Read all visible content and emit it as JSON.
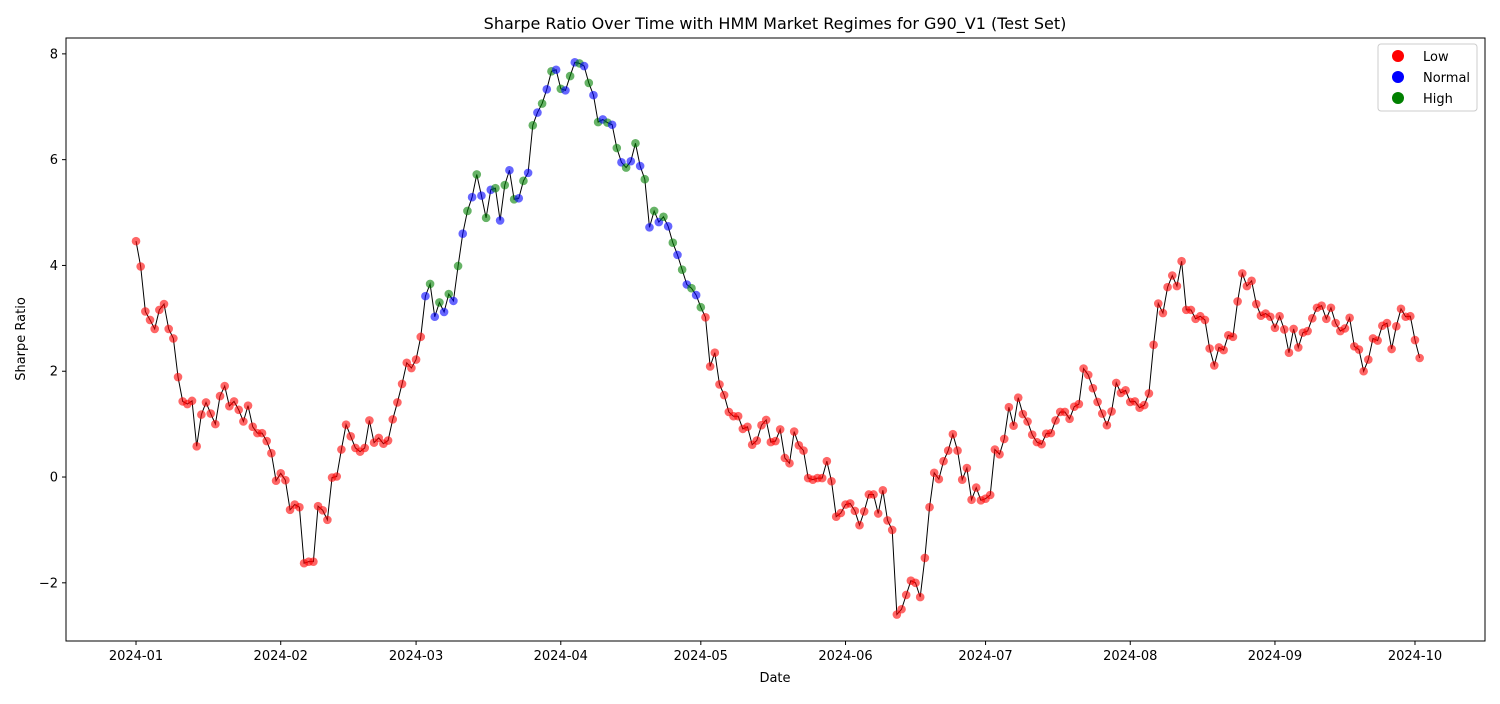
{
  "chart_data": {
    "type": "scatter",
    "title": "Sharpe Ratio Over Time with HMM Market Regimes for G90_V1 (Test Set)",
    "xlabel": "Date",
    "ylabel": "Sharpe Ratio",
    "xlim": [
      "2023-12-17",
      "2024-10-16"
    ],
    "ylim": [
      -3.1,
      8.3
    ],
    "x_ticks": [
      "2024-01-01",
      "2024-02-01",
      "2024-03-01",
      "2024-04-01",
      "2024-05-01",
      "2024-06-01",
      "2024-07-01",
      "2024-08-01",
      "2024-09-01",
      "2024-10-01"
    ],
    "x_tick_labels": [
      "2024-01",
      "2024-02",
      "2024-03",
      "2024-04",
      "2024-05",
      "2024-06",
      "2024-07",
      "2024-08",
      "2024-09",
      "2024-10"
    ],
    "y_ticks": [
      -2,
      0,
      2,
      4,
      6,
      8
    ],
    "y_tick_labels": [
      "−2",
      "0",
      "2",
      "4",
      "6",
      "8"
    ],
    "grid": false,
    "legend_position": "top-right",
    "regimes": [
      {
        "name": "Low",
        "color": "#ff0000"
      },
      {
        "name": "Normal",
        "color": "#0000ff"
      },
      {
        "name": "High",
        "color": "#008000"
      }
    ],
    "line_color": "#000000",
    "start_date": "2024-01-01",
    "regime_codes": "L=Low, N=Normal, H=High",
    "points": [
      [
        4.46,
        "L"
      ],
      [
        3.98,
        "L"
      ],
      [
        3.13,
        "L"
      ],
      [
        2.97,
        "L"
      ],
      [
        2.8,
        "L"
      ],
      [
        3.16,
        "L"
      ],
      [
        3.27,
        "L"
      ],
      [
        2.8,
        "L"
      ],
      [
        2.62,
        "L"
      ],
      [
        1.89,
        "L"
      ],
      [
        1.43,
        "L"
      ],
      [
        1.38,
        "L"
      ],
      [
        1.44,
        "L"
      ],
      [
        0.58,
        "L"
      ],
      [
        1.18,
        "L"
      ],
      [
        1.41,
        "L"
      ],
      [
        1.2,
        "L"
      ],
      [
        1.0,
        "L"
      ],
      [
        1.53,
        "L"
      ],
      [
        1.72,
        "L"
      ],
      [
        1.34,
        "L"
      ],
      [
        1.43,
        "L"
      ],
      [
        1.27,
        "L"
      ],
      [
        1.05,
        "L"
      ],
      [
        1.35,
        "L"
      ],
      [
        0.95,
        "L"
      ],
      [
        0.83,
        "L"
      ],
      [
        0.83,
        "L"
      ],
      [
        0.68,
        "L"
      ],
      [
        0.45,
        "L"
      ],
      [
        -0.07,
        "L"
      ],
      [
        0.07,
        "L"
      ],
      [
        -0.06,
        "L"
      ],
      [
        -0.62,
        "L"
      ],
      [
        -0.52,
        "L"
      ],
      [
        -0.57,
        "L"
      ],
      [
        -1.63,
        "L"
      ],
      [
        -1.6,
        "L"
      ],
      [
        -1.6,
        "L"
      ],
      [
        -0.55,
        "L"
      ],
      [
        -0.63,
        "L"
      ],
      [
        -0.81,
        "L"
      ],
      [
        -0.01,
        "L"
      ],
      [
        0.01,
        "L"
      ],
      [
        0.52,
        "L"
      ],
      [
        0.99,
        "L"
      ],
      [
        0.77,
        "L"
      ],
      [
        0.55,
        "L"
      ],
      [
        0.48,
        "L"
      ],
      [
        0.55,
        "L"
      ],
      [
        1.07,
        "L"
      ],
      [
        0.65,
        "L"
      ],
      [
        0.74,
        "L"
      ],
      [
        0.63,
        "L"
      ],
      [
        0.69,
        "L"
      ],
      [
        1.09,
        "L"
      ],
      [
        1.41,
        "L"
      ],
      [
        1.76,
        "L"
      ],
      [
        2.16,
        "L"
      ],
      [
        2.06,
        "L"
      ],
      [
        2.22,
        "L"
      ],
      [
        2.65,
        "L"
      ],
      [
        3.42,
        "N"
      ],
      [
        3.65,
        "H"
      ],
      [
        3.03,
        "N"
      ],
      [
        3.3,
        "H"
      ],
      [
        3.12,
        "N"
      ],
      [
        3.46,
        "H"
      ],
      [
        3.33,
        "N"
      ],
      [
        3.99,
        "H"
      ],
      [
        4.6,
        "N"
      ],
      [
        5.03,
        "H"
      ],
      [
        5.29,
        "N"
      ],
      [
        5.72,
        "H"
      ],
      [
        5.32,
        "N"
      ],
      [
        4.9,
        "H"
      ],
      [
        5.43,
        "N"
      ],
      [
        5.46,
        "H"
      ],
      [
        4.85,
        "N"
      ],
      [
        5.52,
        "H"
      ],
      [
        5.8,
        "N"
      ],
      [
        5.25,
        "H"
      ],
      [
        5.27,
        "N"
      ],
      [
        5.6,
        "H"
      ],
      [
        5.75,
        "N"
      ],
      [
        6.65,
        "H"
      ],
      [
        6.89,
        "N"
      ],
      [
        7.06,
        "H"
      ],
      [
        7.33,
        "N"
      ],
      [
        7.67,
        "H"
      ],
      [
        7.7,
        "N"
      ],
      [
        7.34,
        "H"
      ],
      [
        7.31,
        "N"
      ],
      [
        7.58,
        "H"
      ],
      [
        7.84,
        "N"
      ],
      [
        7.82,
        "H"
      ],
      [
        7.77,
        "N"
      ],
      [
        7.45,
        "H"
      ],
      [
        7.22,
        "N"
      ],
      [
        6.71,
        "H"
      ],
      [
        6.76,
        "N"
      ],
      [
        6.7,
        "H"
      ],
      [
        6.66,
        "N"
      ],
      [
        6.22,
        "H"
      ],
      [
        5.95,
        "N"
      ],
      [
        5.85,
        "H"
      ],
      [
        5.97,
        "N"
      ],
      [
        6.31,
        "H"
      ],
      [
        5.88,
        "N"
      ],
      [
        5.63,
        "H"
      ],
      [
        4.72,
        "N"
      ],
      [
        5.03,
        "H"
      ],
      [
        4.82,
        "N"
      ],
      [
        4.92,
        "H"
      ],
      [
        4.74,
        "N"
      ],
      [
        4.43,
        "H"
      ],
      [
        4.2,
        "N"
      ],
      [
        3.92,
        "H"
      ],
      [
        3.64,
        "N"
      ],
      [
        3.57,
        "H"
      ],
      [
        3.44,
        "N"
      ],
      [
        3.21,
        "H"
      ],
      [
        3.02,
        "L"
      ],
      [
        2.09,
        "L"
      ],
      [
        2.35,
        "L"
      ],
      [
        1.75,
        "L"
      ],
      [
        1.55,
        "L"
      ],
      [
        1.23,
        "L"
      ],
      [
        1.15,
        "L"
      ],
      [
        1.15,
        "L"
      ],
      [
        0.91,
        "L"
      ],
      [
        0.95,
        "L"
      ],
      [
        0.61,
        "L"
      ],
      [
        0.69,
        "L"
      ],
      [
        0.98,
        "L"
      ],
      [
        1.08,
        "L"
      ],
      [
        0.66,
        "L"
      ],
      [
        0.68,
        "L"
      ],
      [
        0.9,
        "L"
      ],
      [
        0.36,
        "L"
      ],
      [
        0.26,
        "L"
      ],
      [
        0.86,
        "L"
      ],
      [
        0.6,
        "L"
      ],
      [
        0.5,
        "L"
      ],
      [
        -0.02,
        "L"
      ],
      [
        -0.05,
        "L"
      ],
      [
        -0.02,
        "L"
      ],
      [
        -0.02,
        "L"
      ],
      [
        0.3,
        "L"
      ],
      [
        -0.08,
        "L"
      ],
      [
        -0.75,
        "L"
      ],
      [
        -0.68,
        "L"
      ],
      [
        -0.52,
        "L"
      ],
      [
        -0.5,
        "L"
      ],
      [
        -0.64,
        "L"
      ],
      [
        -0.91,
        "L"
      ],
      [
        -0.65,
        "L"
      ],
      [
        -0.33,
        "L"
      ],
      [
        -0.33,
        "L"
      ],
      [
        -0.69,
        "L"
      ],
      [
        -0.25,
        "L"
      ],
      [
        -0.82,
        "L"
      ],
      [
        -1.0,
        "L"
      ],
      [
        -2.6,
        "L"
      ],
      [
        -2.5,
        "L"
      ],
      [
        -2.23,
        "L"
      ],
      [
        -1.96,
        "L"
      ],
      [
        -2.0,
        "L"
      ],
      [
        -2.27,
        "L"
      ],
      [
        -1.53,
        "L"
      ],
      [
        -0.57,
        "L"
      ],
      [
        0.08,
        "L"
      ],
      [
        -0.04,
        "L"
      ],
      [
        0.3,
        "L"
      ],
      [
        0.5,
        "L"
      ],
      [
        0.81,
        "L"
      ],
      [
        0.5,
        "L"
      ],
      [
        -0.05,
        "L"
      ],
      [
        0.17,
        "L"
      ],
      [
        -0.43,
        "L"
      ],
      [
        -0.2,
        "L"
      ],
      [
        -0.44,
        "L"
      ],
      [
        -0.41,
        "L"
      ],
      [
        -0.34,
        "L"
      ],
      [
        0.52,
        "L"
      ],
      [
        0.43,
        "L"
      ],
      [
        0.72,
        "L"
      ],
      [
        1.32,
        "L"
      ],
      [
        0.97,
        "L"
      ],
      [
        1.5,
        "L"
      ],
      [
        1.19,
        "L"
      ],
      [
        1.05,
        "L"
      ],
      [
        0.8,
        "L"
      ],
      [
        0.66,
        "L"
      ],
      [
        0.62,
        "L"
      ],
      [
        0.82,
        "L"
      ],
      [
        0.83,
        "L"
      ],
      [
        1.07,
        "L"
      ],
      [
        1.23,
        "L"
      ],
      [
        1.23,
        "L"
      ],
      [
        1.1,
        "L"
      ],
      [
        1.33,
        "L"
      ],
      [
        1.38,
        "L"
      ],
      [
        2.05,
        "L"
      ],
      [
        1.93,
        "L"
      ],
      [
        1.68,
        "L"
      ],
      [
        1.42,
        "L"
      ],
      [
        1.2,
        "L"
      ],
      [
        0.98,
        "L"
      ],
      [
        1.24,
        "L"
      ],
      [
        1.78,
        "L"
      ],
      [
        1.59,
        "L"
      ],
      [
        1.64,
        "L"
      ],
      [
        1.42,
        "L"
      ],
      [
        1.43,
        "L"
      ],
      [
        1.31,
        "L"
      ],
      [
        1.36,
        "L"
      ],
      [
        1.58,
        "L"
      ],
      [
        2.5,
        "L"
      ],
      [
        3.28,
        "L"
      ],
      [
        3.1,
        "L"
      ],
      [
        3.59,
        "L"
      ],
      [
        3.81,
        "L"
      ],
      [
        3.61,
        "L"
      ],
      [
        4.08,
        "L"
      ],
      [
        3.16,
        "L"
      ],
      [
        3.16,
        "L"
      ],
      [
        2.99,
        "L"
      ],
      [
        3.04,
        "L"
      ],
      [
        2.97,
        "L"
      ],
      [
        2.43,
        "L"
      ],
      [
        2.11,
        "L"
      ],
      [
        2.45,
        "L"
      ],
      [
        2.4,
        "L"
      ],
      [
        2.68,
        "L"
      ],
      [
        2.65,
        "L"
      ],
      [
        3.32,
        "L"
      ],
      [
        3.85,
        "L"
      ],
      [
        3.61,
        "L"
      ],
      [
        3.71,
        "L"
      ],
      [
        3.27,
        "L"
      ],
      [
        3.05,
        "L"
      ],
      [
        3.09,
        "L"
      ],
      [
        3.03,
        "L"
      ],
      [
        2.82,
        "L"
      ],
      [
        3.04,
        "L"
      ],
      [
        2.79,
        "L"
      ],
      [
        2.35,
        "L"
      ],
      [
        2.8,
        "L"
      ],
      [
        2.45,
        "L"
      ],
      [
        2.73,
        "L"
      ],
      [
        2.76,
        "L"
      ],
      [
        3.0,
        "L"
      ],
      [
        3.2,
        "L"
      ],
      [
        3.24,
        "L"
      ],
      [
        2.99,
        "L"
      ],
      [
        3.2,
        "L"
      ],
      [
        2.91,
        "L"
      ],
      [
        2.76,
        "L"
      ],
      [
        2.81,
        "L"
      ],
      [
        3.01,
        "L"
      ],
      [
        2.47,
        "L"
      ],
      [
        2.41,
        "L"
      ],
      [
        2.0,
        "L"
      ],
      [
        2.22,
        "L"
      ],
      [
        2.62,
        "L"
      ],
      [
        2.58,
        "L"
      ],
      [
        2.86,
        "L"
      ],
      [
        2.91,
        "L"
      ],
      [
        2.42,
        "L"
      ],
      [
        2.85,
        "L"
      ],
      [
        3.18,
        "L"
      ],
      [
        3.03,
        "L"
      ],
      [
        3.04,
        "L"
      ],
      [
        2.59,
        "L"
      ],
      [
        2.25,
        "L"
      ]
    ]
  }
}
